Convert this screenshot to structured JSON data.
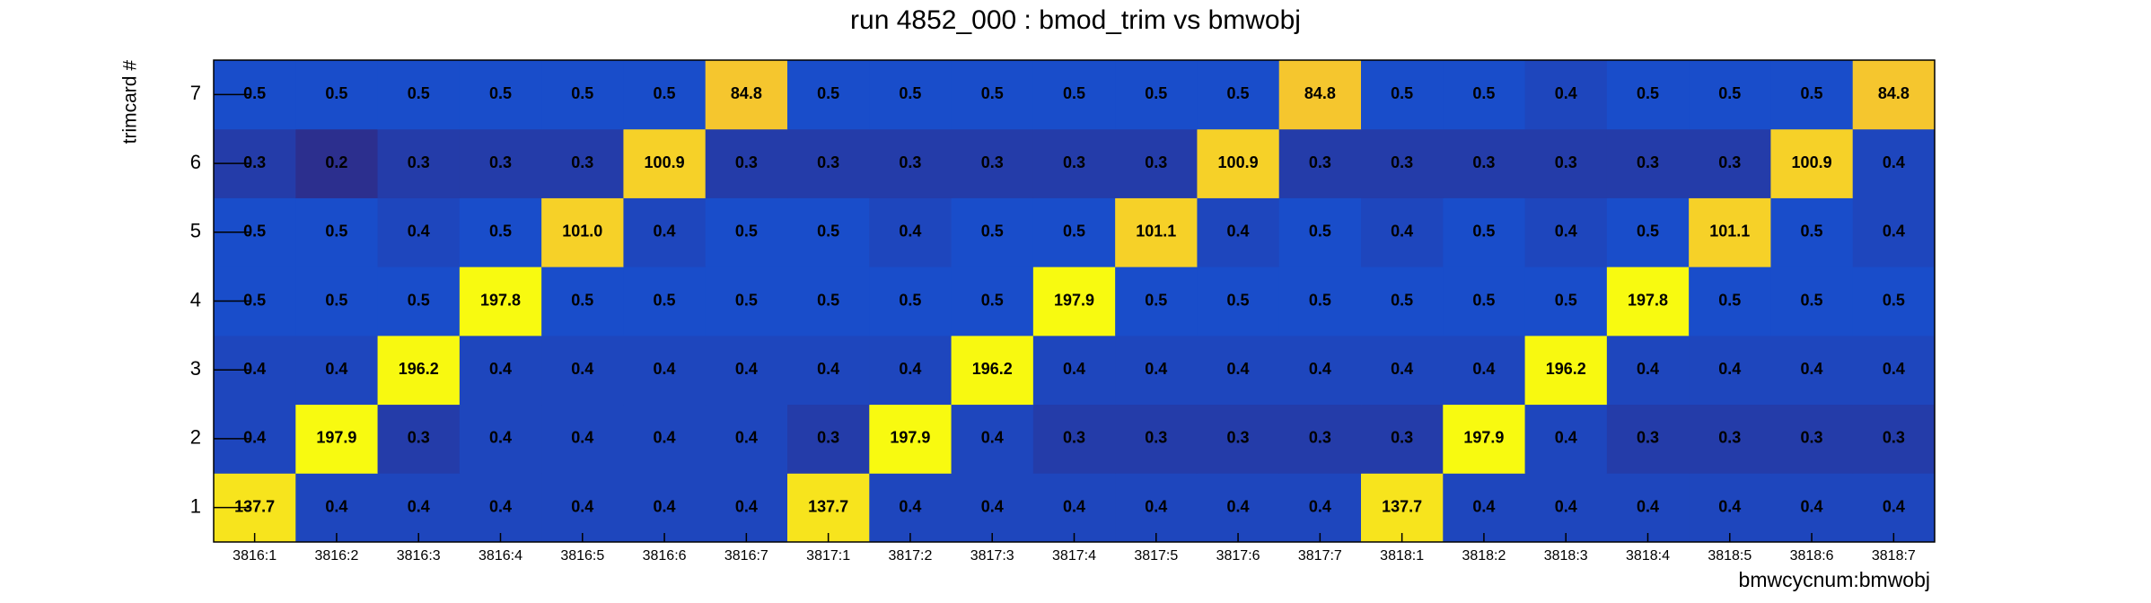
{
  "chart_data": {
    "type": "heatmap",
    "title": "run 4852_000 : bmod_trim vs bmwobj",
    "x_label": "bmwcycnum:bmwobj",
    "y_label": "trimcard #",
    "x_categories": [
      "3816:1",
      "3816:2",
      "3816:3",
      "3816:4",
      "3816:5",
      "3816:6",
      "3816:7",
      "3817:1",
      "3817:2",
      "3817:3",
      "3817:4",
      "3817:5",
      "3817:6",
      "3817:7",
      "3818:1",
      "3818:2",
      "3818:3",
      "3818:4",
      "3818:5",
      "3818:6",
      "3818:7"
    ],
    "y_categories": [
      "1",
      "2",
      "3",
      "4",
      "5",
      "6",
      "7"
    ],
    "values": [
      [
        137.7,
        0.4,
        0.4,
        0.4,
        0.4,
        0.4,
        0.4,
        137.7,
        0.4,
        0.4,
        0.4,
        0.4,
        0.4,
        0.4,
        137.7,
        0.4,
        0.4,
        0.4,
        0.4,
        0.4,
        0.4
      ],
      [
        0.4,
        197.9,
        0.3,
        0.4,
        0.4,
        0.4,
        0.4,
        0.3,
        197.9,
        0.4,
        0.3,
        0.3,
        0.3,
        0.3,
        0.3,
        197.9,
        0.4,
        0.3,
        0.3,
        0.3,
        0.3
      ],
      [
        0.4,
        0.4,
        196.2,
        0.4,
        0.4,
        0.4,
        0.4,
        0.4,
        0.4,
        196.2,
        0.4,
        0.4,
        0.4,
        0.4,
        0.4,
        0.4,
        196.2,
        0.4,
        0.4,
        0.4,
        0.4
      ],
      [
        0.5,
        0.5,
        0.5,
        197.8,
        0.5,
        0.5,
        0.5,
        0.5,
        0.5,
        0.5,
        197.9,
        0.5,
        0.5,
        0.5,
        0.5,
        0.5,
        0.5,
        197.8,
        0.5,
        0.5,
        0.5
      ],
      [
        0.5,
        0.5,
        0.4,
        0.5,
        101.0,
        0.4,
        0.5,
        0.5,
        0.4,
        0.5,
        0.5,
        101.1,
        0.4,
        0.5,
        0.4,
        0.5,
        0.4,
        0.5,
        101.1,
        0.5,
        0.4
      ],
      [
        0.3,
        0.2,
        0.3,
        0.3,
        0.3,
        100.9,
        0.3,
        0.3,
        0.3,
        0.3,
        0.3,
        0.3,
        100.9,
        0.3,
        0.3,
        0.3,
        0.3,
        0.3,
        0.3,
        100.9,
        0.4
      ],
      [
        0.5,
        0.5,
        0.5,
        0.5,
        0.5,
        0.5,
        84.8,
        0.5,
        0.5,
        0.5,
        0.5,
        0.5,
        0.5,
        84.8,
        0.5,
        0.5,
        0.4,
        0.5,
        0.5,
        0.5,
        84.8
      ]
    ],
    "value_labels": [
      [
        "137.7",
        "0.4",
        "0.4",
        "0.4",
        "0.4",
        "0.4",
        "0.4",
        "137.7",
        "0.4",
        "0.4",
        "0.4",
        "0.4",
        "0.4",
        "0.4",
        "137.7",
        "0.4",
        "0.4",
        "0.4",
        "0.4",
        "0.4",
        "0.4"
      ],
      [
        "0.4",
        "197.9",
        "0.3",
        "0.4",
        "0.4",
        "0.4",
        "0.4",
        "0.3",
        "197.9",
        "0.4",
        "0.3",
        "0.3",
        "0.3",
        "0.3",
        "0.3",
        "197.9",
        "0.4",
        "0.3",
        "0.3",
        "0.3",
        "0.3"
      ],
      [
        "0.4",
        "0.4",
        "196.2",
        "0.4",
        "0.4",
        "0.4",
        "0.4",
        "0.4",
        "0.4",
        "196.2",
        "0.4",
        "0.4",
        "0.4",
        "0.4",
        "0.4",
        "0.4",
        "196.2",
        "0.4",
        "0.4",
        "0.4",
        "0.4"
      ],
      [
        "0.5",
        "0.5",
        "0.5",
        "197.8",
        "0.5",
        "0.5",
        "0.5",
        "0.5",
        "0.5",
        "0.5",
        "197.9",
        "0.5",
        "0.5",
        "0.5",
        "0.5",
        "0.5",
        "0.5",
        "197.8",
        "0.5",
        "0.5",
        "0.5"
      ],
      [
        "0.5",
        "0.5",
        "0.4",
        "0.5",
        "101.0",
        "0.4",
        "0.5",
        "0.5",
        "0.4",
        "0.5",
        "0.5",
        "101.1",
        "0.4",
        "0.5",
        "0.4",
        "0.5",
        "0.4",
        "0.5",
        "101.1",
        "0.5",
        "0.4"
      ],
      [
        "0.3",
        "0.2",
        "0.3",
        "0.3",
        "0.3",
        "100.9",
        "0.3",
        "0.3",
        "0.3",
        "0.3",
        "0.3",
        "0.3",
        "100.9",
        "0.3",
        "0.3",
        "0.3",
        "0.3",
        "0.3",
        "0.3",
        "100.9",
        "0.4"
      ],
      [
        "0.5",
        "0.5",
        "0.5",
        "0.5",
        "0.5",
        "0.5",
        "84.8",
        "0.5",
        "0.5",
        "0.5",
        "0.5",
        "0.5",
        "0.5",
        "84.8",
        "0.5",
        "0.5",
        "0.4",
        "0.5",
        "0.5",
        "0.5",
        "84.8"
      ]
    ],
    "color_log": true,
    "palette": [
      "#2c2f8e",
      "#1a4bc8",
      "#0f66e0",
      "#0a89d6",
      "#16a8c0",
      "#5cbb8a",
      "#b7bd5c",
      "#f5c52f",
      "#f8fa10"
    ]
  }
}
